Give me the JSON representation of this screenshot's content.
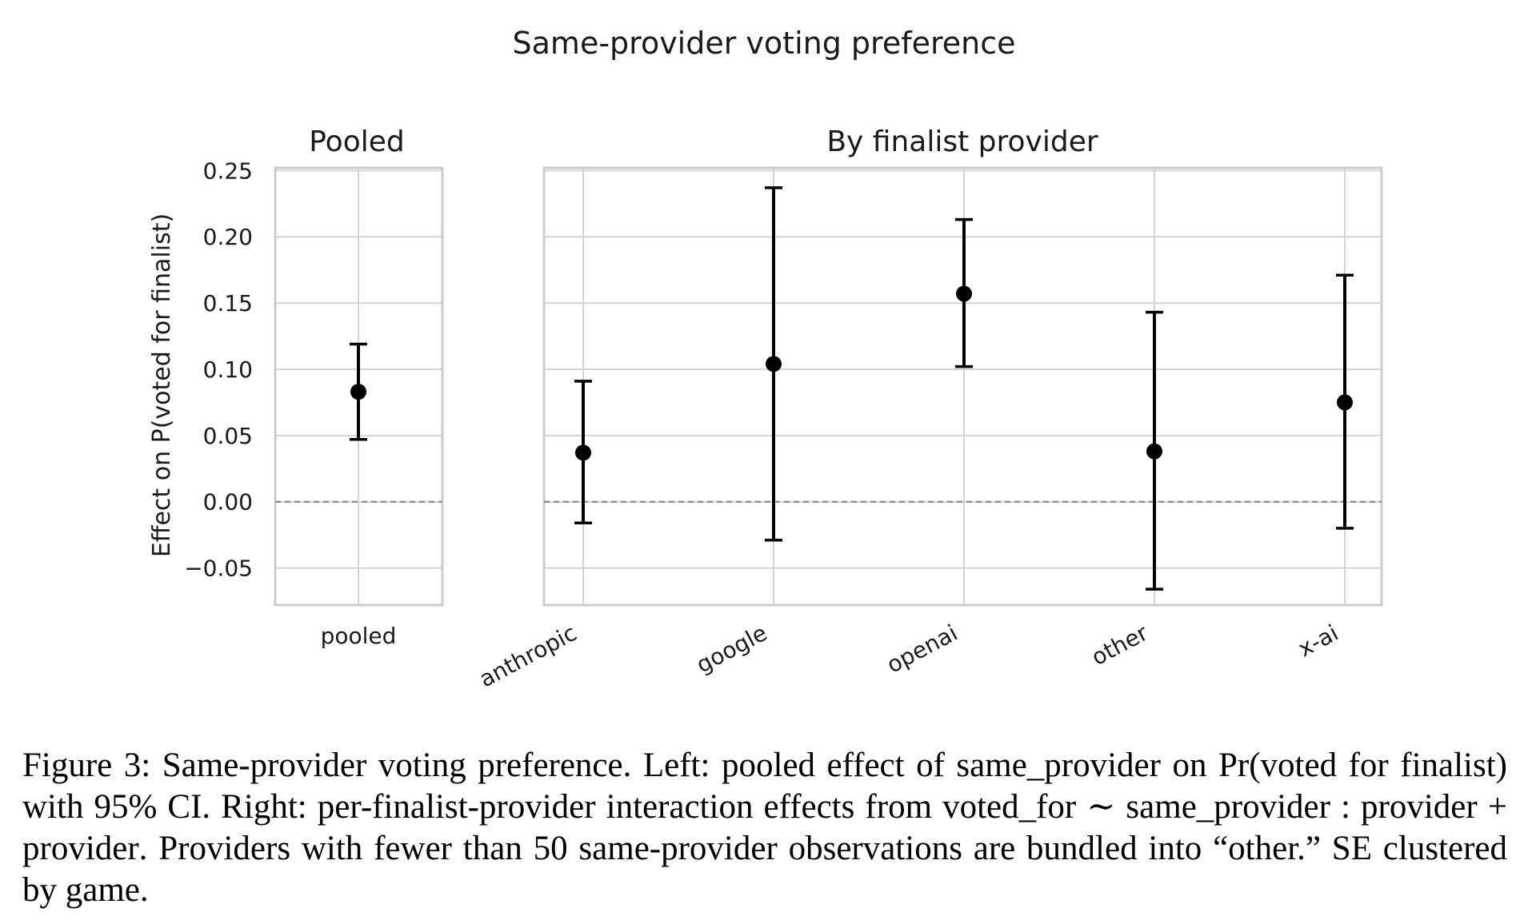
{
  "figure": {
    "suptitle": "Same-provider voting preference",
    "ylabel": "Effect on P(voted for finalist)"
  },
  "chart_data": [
    {
      "type": "scatter",
      "panel": "left",
      "title": "Pooled",
      "categories": [
        "pooled"
      ],
      "estimate": [
        0.083
      ],
      "ci_low": [
        0.047
      ],
      "ci_high": [
        0.119
      ],
      "ylim": [
        -0.078,
        0.252
      ],
      "yticks": [
        -0.05,
        0.0,
        0.05,
        0.1,
        0.15,
        0.2,
        0.25
      ],
      "ytick_labels": [
        "−0.05",
        "0.00",
        "0.05",
        "0.10",
        "0.15",
        "0.20",
        "0.25"
      ],
      "reference_line": 0,
      "grid": true
    },
    {
      "type": "scatter",
      "panel": "right",
      "title": "By finalist provider",
      "categories": [
        "anthropic",
        "google",
        "openai",
        "other",
        "x-ai"
      ],
      "estimate": [
        0.037,
        0.104,
        0.157,
        0.038,
        0.075
      ],
      "ci_low": [
        -0.016,
        -0.029,
        0.102,
        -0.066,
        -0.02
      ],
      "ci_high": [
        0.091,
        0.237,
        0.213,
        0.143,
        0.171
      ],
      "ylim": [
        -0.078,
        0.252
      ],
      "reference_line": 0,
      "grid": true
    }
  ],
  "caption": {
    "figure_label": "Figure 3:",
    "seg1": "Same-provider voting preference.   Left:   pooled effect of ",
    "code1": "same_provider",
    "seg2": " on Pr(voted for finalist) with 95% CI. Right: per-finalist-provider interaction effects from ",
    "code2": "voted_for",
    "seg3": " ∼ ",
    "code3": "same_provider : provider + provider",
    "seg4": ". Providers with fewer than 50 same-provider observations are bundled into “other.” SE clustered by game."
  }
}
